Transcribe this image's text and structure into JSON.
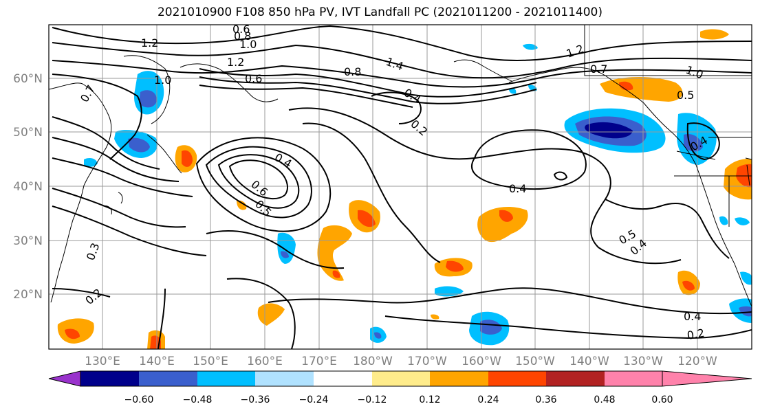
{
  "title": "2021010900 F108 850 hPa PV, IVT Landfall PC (2021011200 - 2021011400)",
  "lat_labels": [
    "60°N",
    "50°N",
    "40°N",
    "30°N",
    "20°N"
  ],
  "lon_labels": [
    "130°E",
    "140°E",
    "150°E",
    "160°E",
    "170°E",
    "180°W",
    "170°W",
    "160°W",
    "150°W",
    "140°W",
    "130°W",
    "120°W"
  ],
  "colorbar": {
    "colors": [
      "#9932cc",
      "#00008b",
      "#3a5fcd",
      "#00bfff",
      "#b0e2ff",
      "#ffffff",
      "#ffec8b",
      "#ffa500",
      "#ff4500",
      "#b22222",
      "#ff82ab"
    ],
    "ticks": [
      "−0.60",
      "−0.48",
      "−0.36",
      "−0.24",
      "−0.12",
      "0.12",
      "0.24",
      "0.36",
      "0.48",
      "0.60"
    ]
  },
  "contour_labels": [
    "1.2",
    "0.6",
    "0.8",
    "1.0",
    "1.2",
    "1.4",
    "0.8",
    "0.6",
    "1.0",
    "0.7",
    "0.4",
    "0.2",
    "1.2",
    "0.7",
    "1.0",
    "0.5",
    "0.4",
    "0.4",
    "0.5",
    "0.6",
    "0.4",
    "0.5",
    "0.4",
    "0.3",
    "0.2",
    "0.4",
    "0.2"
  ]
}
